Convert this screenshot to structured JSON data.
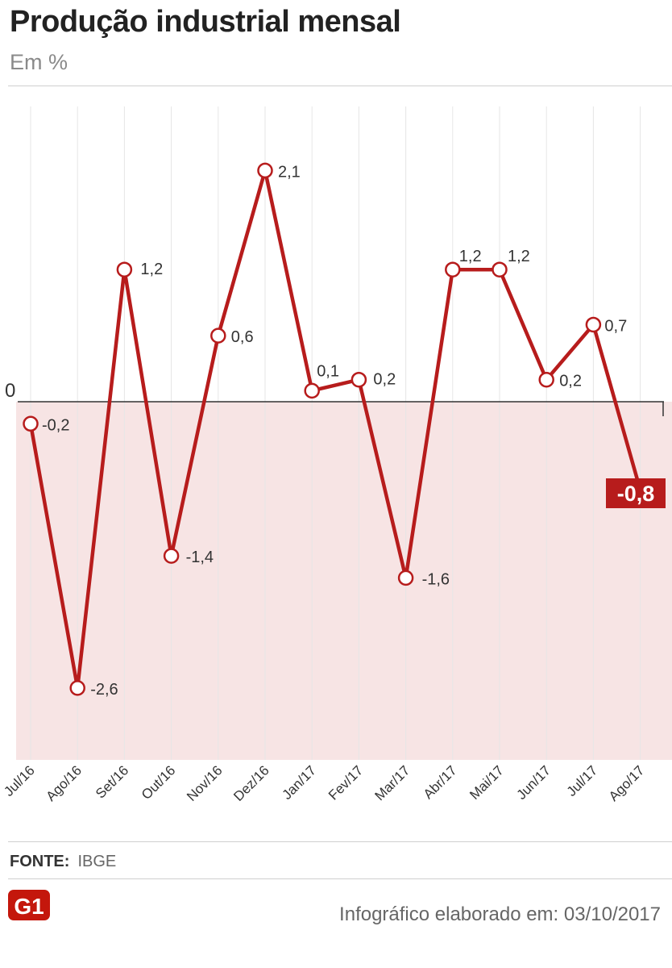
{
  "header": {
    "title": "Produção industrial mensal",
    "subtitle": "Em %"
  },
  "footer": {
    "source_label": "FONTE:",
    "source_value": "IBGE",
    "logo_text": "G1",
    "note": "Infográfico elaborado em: 03/10/2017"
  },
  "colors": {
    "line": "#b71c1c",
    "negative_area": "#f7e4e4",
    "highlight_box": "#b71c1c",
    "grid": "#e6e6e6"
  },
  "chart_data": {
    "type": "line",
    "title": "Produção industrial mensal",
    "subtitle": "Em %",
    "zero_label": "0",
    "categories": [
      "Jul/16",
      "Ago/16",
      "Set/16",
      "Out/16",
      "Nov/16",
      "Dez/16",
      "Jan/17",
      "Fev/17",
      "Mar/17",
      "Abr/17",
      "Mai/17",
      "Jun/17",
      "Jul/17",
      "Ago/17"
    ],
    "series": [
      {
        "values": [
          -0.2,
          -2.6,
          1.2,
          -1.4,
          0.6,
          2.1,
          0.1,
          0.2,
          -1.6,
          1.2,
          1.2,
          0.2,
          0.7,
          -0.8
        ],
        "labels": [
          "-0,2",
          "-2,6",
          "1,2",
          "-1,4",
          "0,6",
          "2,1",
          "0,1",
          "0,2",
          "-1,6",
          "1,2",
          "1,2",
          "0,2",
          "0,7",
          "-0,8"
        ]
      }
    ],
    "highlight_last": true,
    "negative_region_shaded": true,
    "grid": "vertical",
    "legend": "none"
  }
}
